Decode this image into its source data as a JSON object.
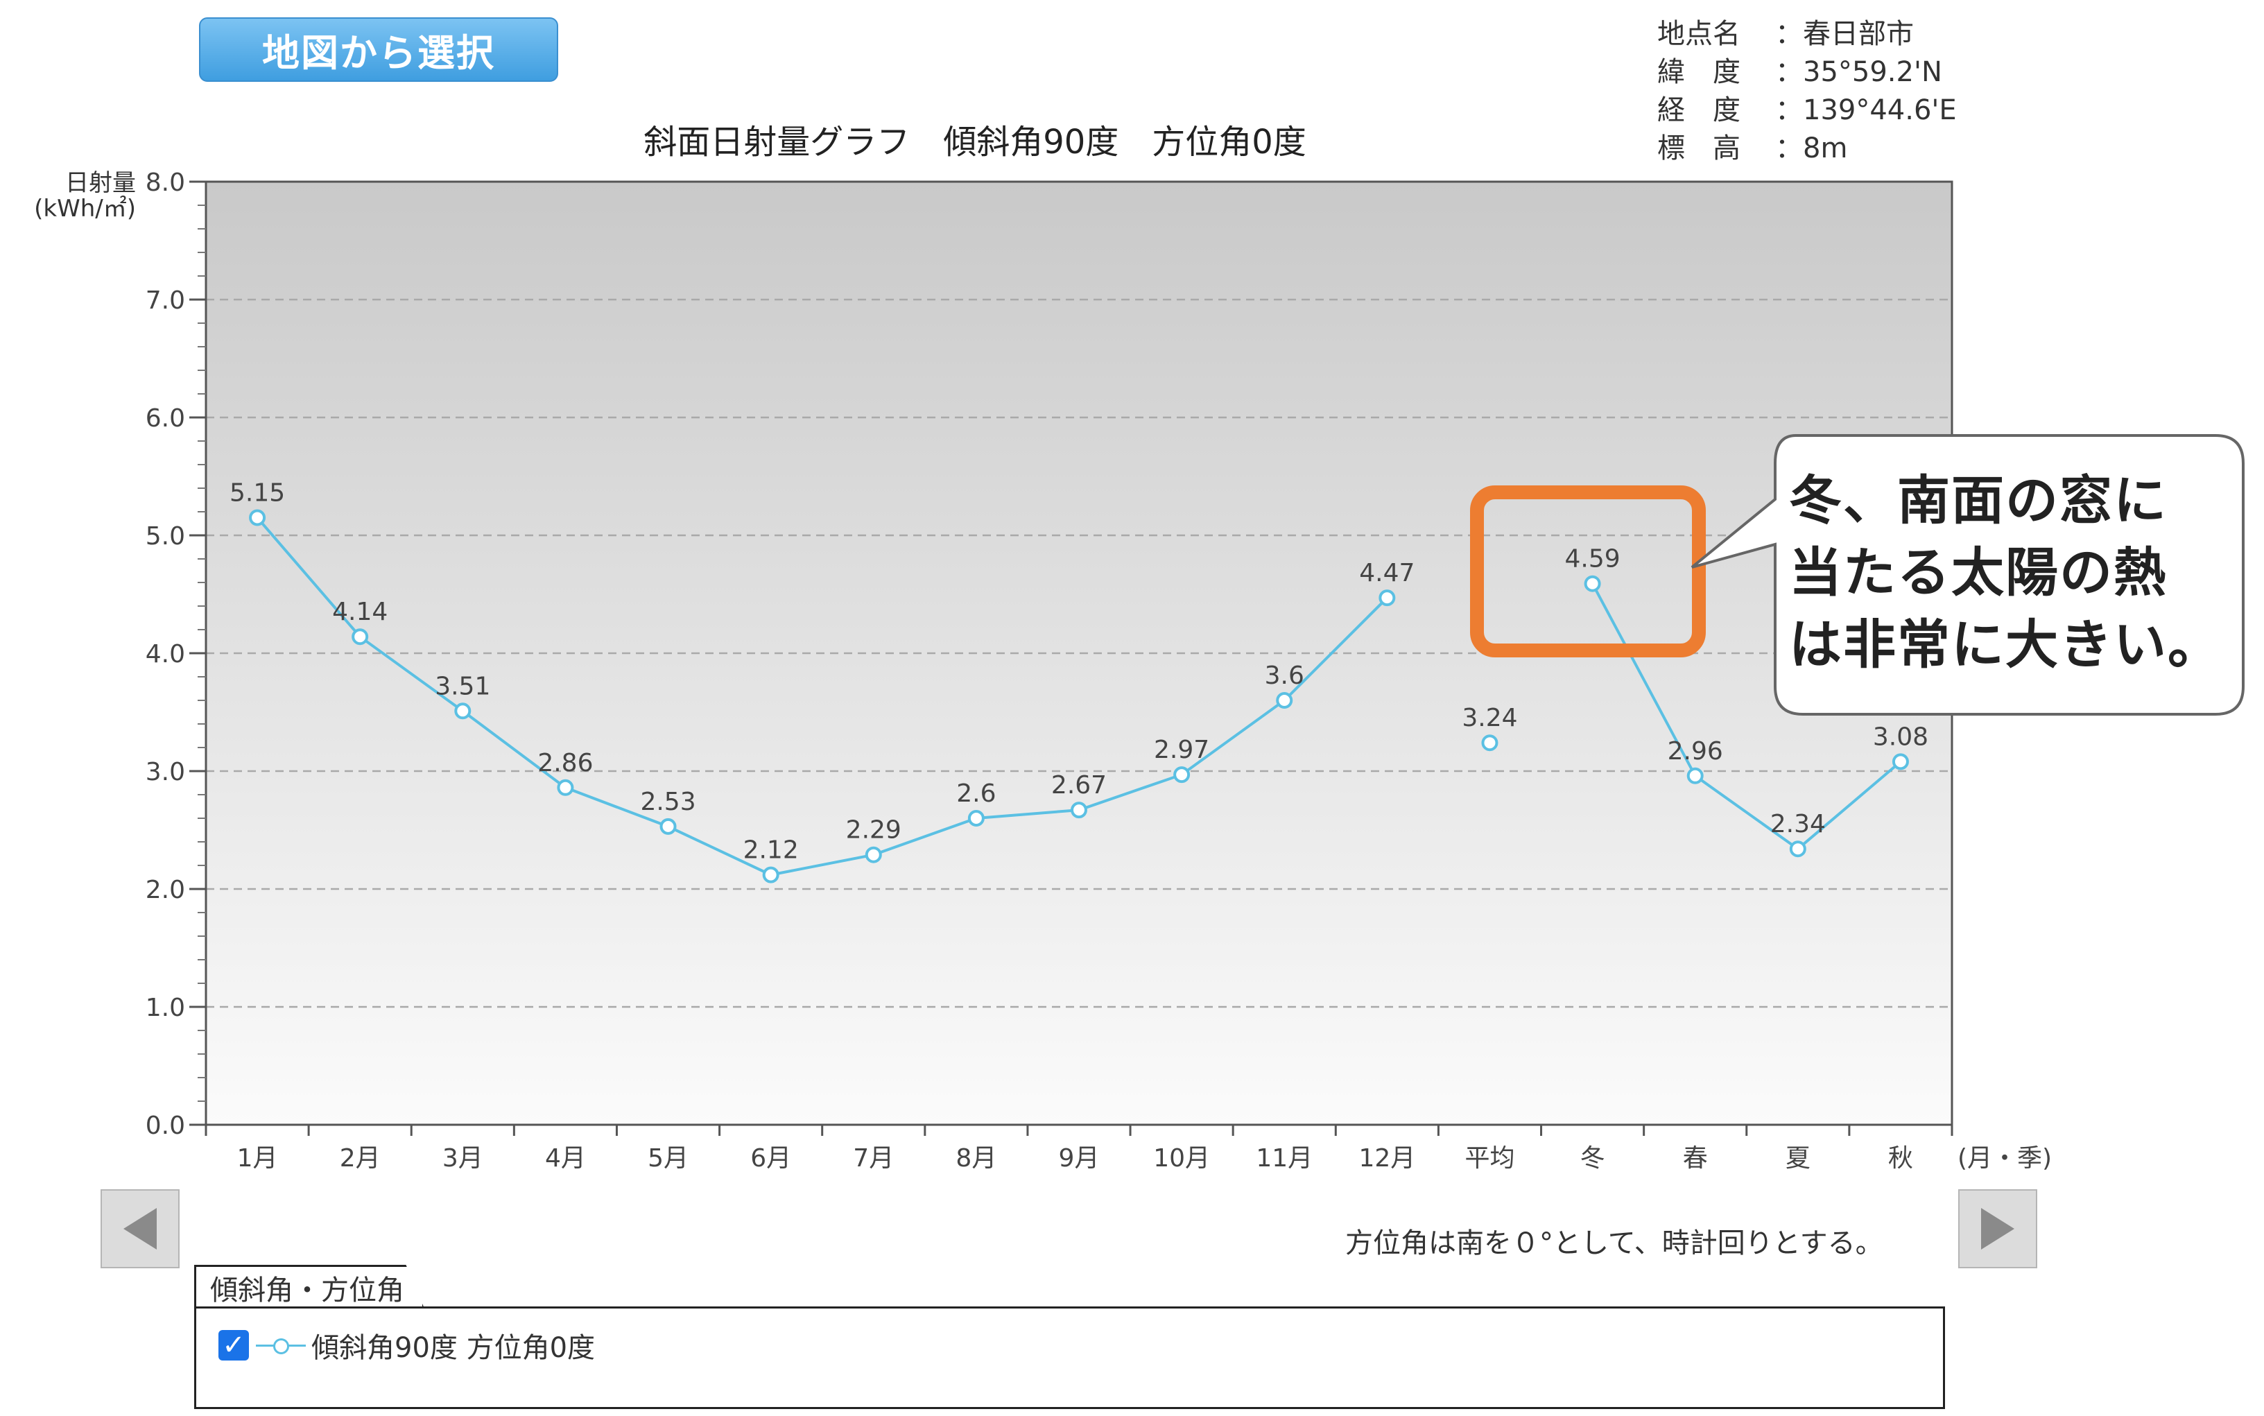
{
  "map_button": {
    "label": "地図から選択"
  },
  "location_info": [
    {
      "label": "地点名",
      "value": "：春日部市"
    },
    {
      "label": "緯　度",
      "value": "：35°59.2'N"
    },
    {
      "label": "経　度",
      "value": "：139°44.6'E"
    },
    {
      "label": "標　高",
      "value": "：8m"
    }
  ],
  "note": "方位角は南を０°として、時計回りとする。",
  "legend": {
    "tab_label": "傾斜角・方位角",
    "item_label": "傾斜角90度 方位角0度",
    "checked": true,
    "check_glyph": "✓",
    "icon": "checkbox-checked-icon"
  },
  "nav": {
    "prev_icon": "triangle-left-icon",
    "next_icon": "triangle-right-icon"
  },
  "callout": {
    "lines": [
      "冬、南面の窓に",
      "当たる太陽の熱",
      "は非常に大きい。"
    ],
    "highlight_color": "#ed7d31"
  },
  "chart_data": {
    "type": "line",
    "title": "斜面日射量グラフ　傾斜角90度　方位角0度",
    "ylabel": "日射量",
    "yunit": "(kWh/㎡)",
    "xunit": "(月・季)",
    "ylim": [
      0,
      8
    ],
    "yticks": [
      "0.0",
      "1.0",
      "2.0",
      "3.0",
      "4.0",
      "5.0",
      "6.0",
      "7.0",
      "8.0"
    ],
    "grid": true,
    "categories": [
      "1月",
      "2月",
      "3月",
      "4月",
      "5月",
      "6月",
      "7月",
      "8月",
      "9月",
      "10月",
      "11月",
      "12月",
      "平均",
      "冬",
      "春",
      "夏",
      "秋"
    ],
    "series": [
      {
        "name": "傾斜角90度 方位角0度",
        "color": "#5bc0e3",
        "values": [
          5.15,
          4.14,
          3.51,
          2.86,
          2.53,
          2.12,
          2.29,
          2.6,
          2.67,
          2.97,
          3.6,
          4.47,
          3.24,
          4.59,
          2.96,
          2.34,
          3.08
        ],
        "labels": [
          "5.15",
          "4.14",
          "3.51",
          "2.86",
          "2.53",
          "2.12",
          "2.29",
          "2.6",
          "2.67",
          "2.97",
          "3.6",
          "4.47",
          "3.24",
          "4.59",
          "2.96",
          "2.34",
          "3.08"
        ],
        "segments": [
          [
            0,
            11
          ],
          [
            12,
            12
          ],
          [
            13,
            16
          ]
        ]
      }
    ]
  }
}
